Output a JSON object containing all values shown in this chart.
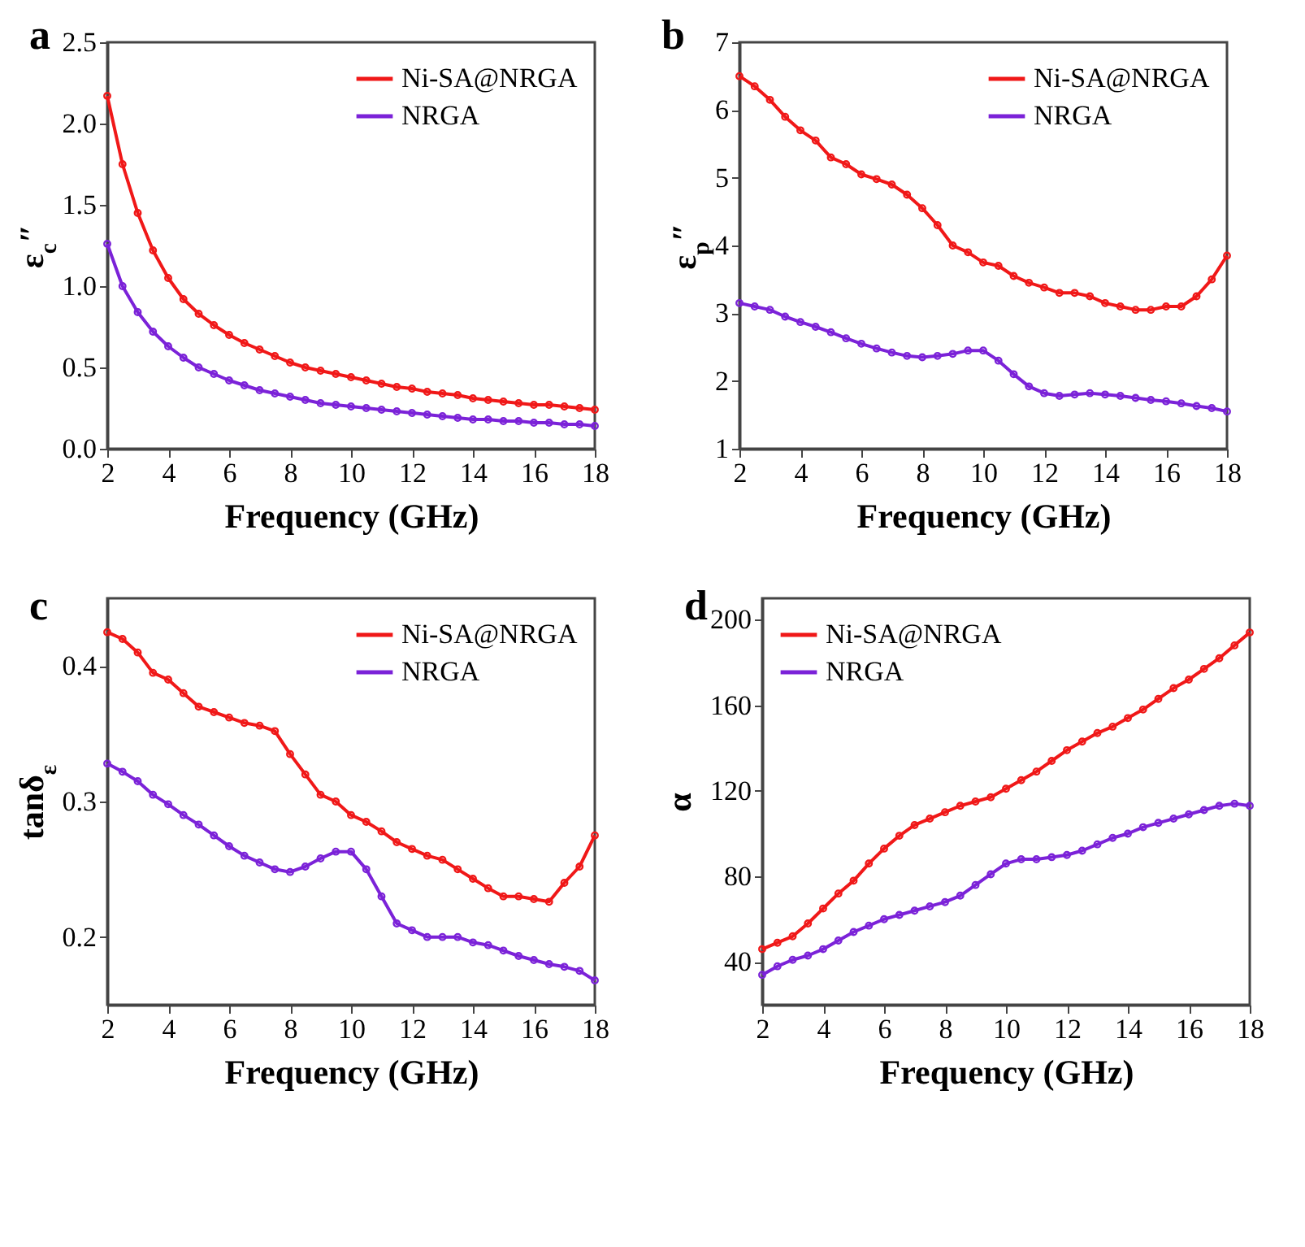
{
  "chart_data": [
    {
      "type": "line",
      "title": "a",
      "xlabel": "Frequency (GHz)",
      "ylabel": "ε$_{c}$″",
      "x": [
        2,
        2.5,
        3,
        3.5,
        4,
        4.5,
        5,
        5.5,
        6,
        6.5,
        7,
        7.5,
        8,
        8.5,
        9,
        9.5,
        10,
        10.5,
        11,
        11.5,
        12,
        12.5,
        13,
        13.5,
        14,
        14.5,
        15,
        15.5,
        16,
        16.5,
        17,
        17.5,
        18
      ],
      "xlim": [
        2,
        18
      ],
      "xticks": [
        2,
        4,
        6,
        8,
        10,
        12,
        14,
        16,
        18
      ],
      "ylim": [
        0,
        2.5
      ],
      "yticks": [
        {
          "value": 0,
          "label": "0.0"
        },
        {
          "value": 0.5,
          "label": "0.5"
        },
        {
          "value": 1,
          "label": "1.0"
        },
        {
          "value": 1.5,
          "label": "1.5"
        },
        {
          "value": 2,
          "label": "2.0"
        },
        {
          "value": 2.5,
          "label": "2.5"
        }
      ],
      "legend": "top right",
      "marker": "circle",
      "line_style": "solid",
      "grid": false,
      "series": [
        {
          "name": "Ni-SA@NRGA",
          "color": "#f01818",
          "values": [
            2.17,
            1.75,
            1.45,
            1.22,
            1.05,
            0.92,
            0.83,
            0.76,
            0.7,
            0.65,
            0.61,
            0.57,
            0.53,
            0.5,
            0.48,
            0.46,
            0.44,
            0.42,
            0.4,
            0.38,
            0.37,
            0.35,
            0.34,
            0.33,
            0.31,
            0.3,
            0.29,
            0.28,
            0.27,
            0.27,
            0.26,
            0.25,
            0.24
          ]
        },
        {
          "name": "NRGA",
          "color": "#7b22d8",
          "values": [
            1.26,
            1.0,
            0.84,
            0.72,
            0.63,
            0.56,
            0.5,
            0.46,
            0.42,
            0.39,
            0.36,
            0.34,
            0.32,
            0.3,
            0.28,
            0.27,
            0.26,
            0.25,
            0.24,
            0.23,
            0.22,
            0.21,
            0.2,
            0.19,
            0.18,
            0.18,
            0.17,
            0.17,
            0.16,
            0.16,
            0.15,
            0.15,
            0.14
          ]
        }
      ]
    },
    {
      "type": "line",
      "title": "b",
      "xlabel": "Frequency (GHz)",
      "ylabel": "ε$_{p}$″",
      "x": [
        2,
        2.5,
        3,
        3.5,
        4,
        4.5,
        5,
        5.5,
        6,
        6.5,
        7,
        7.5,
        8,
        8.5,
        9,
        9.5,
        10,
        10.5,
        11,
        11.5,
        12,
        12.5,
        13,
        13.5,
        14,
        14.5,
        15,
        15.5,
        16,
        16.5,
        17,
        17.5,
        18
      ],
      "xlim": [
        2,
        18
      ],
      "xticks": [
        2,
        4,
        6,
        8,
        10,
        12,
        14,
        16,
        18
      ],
      "ylim": [
        1,
        7
      ],
      "yticks": [
        1,
        2,
        3,
        4,
        5,
        6,
        7
      ],
      "legend": "top right",
      "marker": "circle",
      "line_style": "solid",
      "grid": false,
      "series": [
        {
          "name": "Ni-SA@NRGA",
          "color": "#f01818",
          "values": [
            6.5,
            6.35,
            6.15,
            5.9,
            5.7,
            5.55,
            5.3,
            5.2,
            5.05,
            4.98,
            4.9,
            4.75,
            4.55,
            4.3,
            4.0,
            3.9,
            3.75,
            3.7,
            3.55,
            3.45,
            3.38,
            3.3,
            3.3,
            3.25,
            3.15,
            3.1,
            3.05,
            3.05,
            3.1,
            3.1,
            3.25,
            3.5,
            3.85
          ]
        },
        {
          "name": "NRGA",
          "color": "#7b22d8",
          "values": [
            3.15,
            3.1,
            3.05,
            2.95,
            2.87,
            2.8,
            2.72,
            2.63,
            2.55,
            2.48,
            2.42,
            2.37,
            2.35,
            2.37,
            2.4,
            2.45,
            2.45,
            2.3,
            2.1,
            1.92,
            1.82,
            1.78,
            1.8,
            1.82,
            1.8,
            1.78,
            1.75,
            1.72,
            1.7,
            1.67,
            1.63,
            1.6,
            1.55
          ]
        }
      ]
    },
    {
      "type": "line",
      "title": "c",
      "xlabel": "Frequency (GHz)",
      "ylabel": "tanδ$_{ε}$",
      "x": [
        2,
        2.5,
        3,
        3.5,
        4,
        4.5,
        5,
        5.5,
        6,
        6.5,
        7,
        7.5,
        8,
        8.5,
        9,
        9.5,
        10,
        10.5,
        11,
        11.5,
        12,
        12.5,
        13,
        13.5,
        14,
        14.5,
        15,
        15.5,
        16,
        16.5,
        17,
        17.5,
        18
      ],
      "xlim": [
        2,
        18
      ],
      "xticks": [
        2,
        4,
        6,
        8,
        10,
        12,
        14,
        16,
        18
      ],
      "ylim": [
        0.15,
        0.45
      ],
      "yticks": [
        0.2,
        0.3,
        0.4
      ],
      "legend": "top right",
      "marker": "circle",
      "line_style": "solid",
      "grid": false,
      "series": [
        {
          "name": "Ni-SA@NRGA",
          "color": "#f01818",
          "values": [
            0.425,
            0.42,
            0.41,
            0.395,
            0.39,
            0.38,
            0.37,
            0.366,
            0.362,
            0.358,
            0.356,
            0.352,
            0.335,
            0.32,
            0.305,
            0.3,
            0.29,
            0.285,
            0.278,
            0.27,
            0.265,
            0.26,
            0.257,
            0.25,
            0.243,
            0.236,
            0.23,
            0.23,
            0.228,
            0.226,
            0.24,
            0.252,
            0.275
          ]
        },
        {
          "name": "NRGA",
          "color": "#7b22d8",
          "values": [
            0.328,
            0.322,
            0.315,
            0.305,
            0.298,
            0.29,
            0.283,
            0.275,
            0.267,
            0.26,
            0.255,
            0.25,
            0.248,
            0.252,
            0.258,
            0.263,
            0.263,
            0.25,
            0.23,
            0.21,
            0.205,
            0.2,
            0.2,
            0.2,
            0.196,
            0.194,
            0.19,
            0.186,
            0.183,
            0.18,
            0.178,
            0.175,
            0.168
          ]
        }
      ]
    },
    {
      "type": "line",
      "title": "d",
      "xlabel": "Frequency (GHz)",
      "ylabel": "α",
      "x": [
        2,
        2.5,
        3,
        3.5,
        4,
        4.5,
        5,
        5.5,
        6,
        6.5,
        7,
        7.5,
        8,
        8.5,
        9,
        9.5,
        10,
        10.5,
        11,
        11.5,
        12,
        12.5,
        13,
        13.5,
        14,
        14.5,
        15,
        15.5,
        16,
        16.5,
        17,
        17.5,
        18
      ],
      "xlim": [
        2,
        18
      ],
      "xticks": [
        2,
        4,
        6,
        8,
        10,
        12,
        14,
        16,
        18
      ],
      "ylim": [
        20,
        210
      ],
      "yticks": [
        40,
        80,
        120,
        160,
        200
      ],
      "legend": "top left",
      "marker": "circle",
      "line_style": "solid",
      "grid": false,
      "series": [
        {
          "name": "Ni-SA@NRGA",
          "color": "#f01818",
          "values": [
            46,
            49,
            52,
            58,
            65,
            72,
            78,
            86,
            93,
            99,
            104,
            107,
            110,
            113,
            115,
            117,
            121,
            125,
            129,
            134,
            139,
            143,
            147,
            150,
            154,
            158,
            163,
            168,
            172,
            177,
            182,
            188,
            194
          ]
        },
        {
          "name": "NRGA",
          "color": "#7b22d8",
          "values": [
            34,
            38,
            41,
            43,
            46,
            50,
            54,
            57,
            60,
            62,
            64,
            66,
            68,
            71,
            76,
            81,
            86,
            88,
            88,
            89,
            90,
            92,
            95,
            98,
            100,
            103,
            105,
            107,
            109,
            111,
            113,
            114,
            113
          ]
        }
      ]
    }
  ]
}
